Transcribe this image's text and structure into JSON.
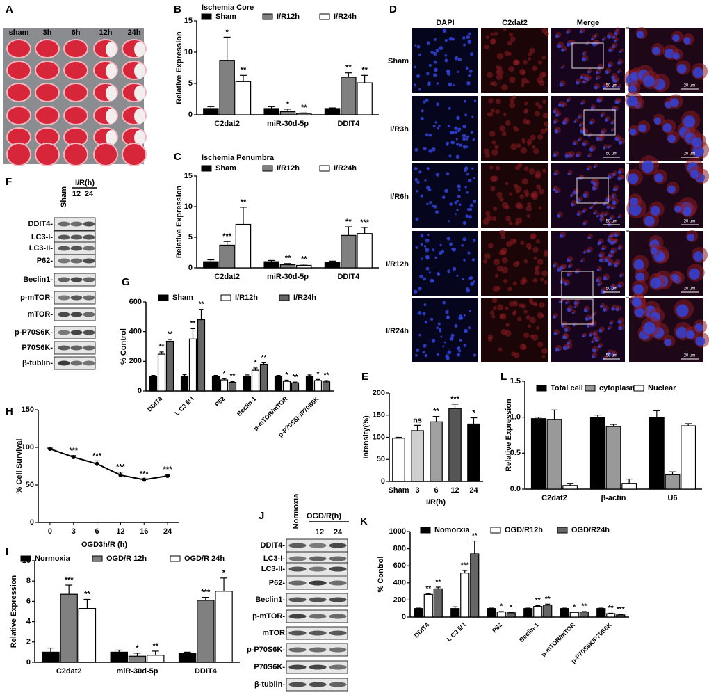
{
  "panels": {
    "A": {
      "label": "A",
      "groups": [
        "sham",
        "3h",
        "6h",
        "12h",
        "24h"
      ]
    },
    "D": {
      "label": "D",
      "columns": [
        "DAPI",
        "C2dat2",
        "Merge"
      ],
      "rows": [
        "Sham",
        "I/R3h",
        "I/R6h",
        "I/R12h",
        "I/R24h"
      ],
      "scale_bars": [
        "50 μm",
        "20 μm"
      ]
    },
    "F": {
      "label": "F",
      "header": "Sham",
      "group": "I/R(h)",
      "lanes": [
        "12",
        "24"
      ],
      "rows": [
        "DDIT4-",
        "LC3-I-",
        "LC3-II-",
        "P62-",
        "Beclin1-",
        "p-mTOR-",
        "mTOR-",
        "p-P70S6K-",
        "P70S6K-",
        "β-tublin-"
      ]
    },
    "J": {
      "label": "J",
      "header": "Normoxia",
      "group": "OGD/R(h)",
      "lanes": [
        "12",
        "24"
      ],
      "rows": [
        "DDIT4-",
        "LC3-I-",
        "LC3-II-",
        "P62-",
        "Beclin1-",
        "p-mTOR-",
        "mTOR",
        "p-P70S6K-",
        "P70S6K-",
        "β-tublin-"
      ]
    }
  },
  "chart_data": [
    {
      "type": "bar",
      "label": "B",
      "title": "Ischemia Core",
      "y_label": "Relative Expression",
      "categories": [
        "C2dat2",
        "miR-30d-5p",
        "DDIT4"
      ],
      "ylim": [
        0,
        15
      ],
      "yticks": [
        0,
        5,
        10,
        15
      ],
      "series": [
        {
          "name": "Sham",
          "color": "#000000",
          "values": [
            1,
            1,
            1
          ],
          "errors": [
            0.3,
            0.3,
            0.1
          ]
        },
        {
          "name": "I/R12h",
          "color": "#808080",
          "values": [
            8.7,
            0.5,
            6
          ],
          "errors": [
            3.7,
            0.4,
            0.7
          ],
          "annotations": [
            "*",
            "*",
            "**"
          ]
        },
        {
          "name": "I/R24h",
          "color": "#ffffff",
          "values": [
            5.3,
            0.2,
            5.1
          ],
          "errors": [
            1,
            0.1,
            1.2
          ],
          "annotations": [
            "**",
            "**",
            "**"
          ]
        }
      ]
    },
    {
      "type": "bar",
      "label": "C",
      "title": "Ischemia Penumbra",
      "y_label": "Relative Expression",
      "categories": [
        "C2dat2",
        "miR-30d-5p",
        "DDIT4"
      ],
      "ylim": [
        0,
        15
      ],
      "yticks": [
        0,
        5,
        10,
        15
      ],
      "series": [
        {
          "name": "Sham",
          "color": "#000000",
          "values": [
            1,
            1,
            0.9
          ],
          "errors": [
            0.3,
            0.2,
            0.2
          ]
        },
        {
          "name": "I/R12h",
          "color": "#808080",
          "values": [
            3.7,
            0.5,
            5.3
          ],
          "errors": [
            0.6,
            0.2,
            1.4
          ],
          "annotations": [
            "***",
            "**",
            "**"
          ]
        },
        {
          "name": "I/R24h",
          "color": "#ffffff",
          "values": [
            7.1,
            0.4,
            5.6
          ],
          "errors": [
            2.8,
            0.2,
            1
          ],
          "annotations": [
            "**",
            "**",
            "***"
          ]
        }
      ]
    },
    {
      "type": "bar",
      "label": "G",
      "y_label": "% Control",
      "categories": [
        "DDIT4",
        "L C3 Ⅱ/ Ⅰ",
        "P62",
        "Beclin-1",
        "p-mTOR/mTOR",
        "p-P70S6K/P70S6K"
      ],
      "ylim": [
        0,
        600
      ],
      "yticks": [
        0,
        200,
        400,
        600
      ],
      "series": [
        {
          "name": "Sham",
          "color": "#000000",
          "values": [
            100,
            100,
            100,
            100,
            100,
            100
          ],
          "errors": [
            5,
            10,
            5,
            8,
            5,
            8
          ]
        },
        {
          "name": "I/R12h",
          "color": "#ffffff",
          "values": [
            248,
            350,
            75,
            140,
            65,
            70
          ],
          "errors": [
            15,
            70,
            8,
            15,
            8,
            8
          ],
          "annotations": [
            "**",
            "**",
            "*",
            "*",
            "*",
            "*"
          ]
        },
        {
          "name": "I/R24h",
          "color": "#666666",
          "values": [
            335,
            480,
            58,
            180,
            55,
            62
          ],
          "errors": [
            12,
            70,
            5,
            10,
            5,
            8
          ],
          "annotations": [
            "**",
            "**",
            "**",
            "**",
            "**",
            "**"
          ]
        }
      ]
    },
    {
      "type": "bar",
      "label": "E",
      "y_label": "Intensity(%)",
      "x_label": "I/R(h)",
      "categories": [
        "Sham",
        "3",
        "6",
        "12",
        "24"
      ],
      "ylim": [
        0,
        200
      ],
      "yticks": [
        0,
        50,
        100,
        150,
        200
      ],
      "values": [
        98,
        115,
        135,
        165,
        130
      ],
      "errors": [
        2,
        12,
        12,
        10,
        14
      ],
      "colors": [
        "#ffffff",
        "#d0d0d0",
        "#a0a0a0",
        "#555555",
        "#000000"
      ],
      "annotations": [
        null,
        "ns",
        "**",
        "***",
        "*"
      ]
    },
    {
      "type": "bar",
      "label": "L",
      "y_label": "Relative Expression",
      "categories": [
        "C2dat2",
        "β-actin",
        "U6"
      ],
      "ylim": [
        0,
        1.5
      ],
      "yticks": [
        {
          "value": 0,
          "label": "0.0"
        },
        0.5,
        {
          "value": 1,
          "label": "1.0"
        },
        1.5
      ],
      "series": [
        {
          "name": "Total cell",
          "color": "#000000",
          "values": [
            0.98,
            1.0,
            1.0
          ],
          "errors": [
            0.02,
            0.03,
            0.09
          ]
        },
        {
          "name": "cytoplasm",
          "color": "#999999",
          "values": [
            0.97,
            0.87,
            0.2
          ],
          "errors": [
            0.13,
            0.03,
            0.04
          ]
        },
        {
          "name": "Nuclear",
          "color": "#ffffff",
          "values": [
            0.05,
            0.08,
            0.88
          ],
          "errors": [
            0.03,
            0.06,
            0.03
          ]
        }
      ]
    },
    {
      "type": "line",
      "label": "H",
      "y_label": "% Cell Survival",
      "x_label": "OGD3h/R (h)",
      "categories": [
        "0",
        "3",
        "6",
        "12",
        "16",
        "24"
      ],
      "ylim": [
        0,
        150
      ],
      "yticks": [
        0,
        50,
        100,
        150
      ],
      "values": [
        98,
        87,
        78,
        63,
        57,
        62
      ],
      "errors": [
        1,
        2,
        4,
        4,
        1,
        2
      ],
      "color": "#000000",
      "annotations": [
        null,
        "***",
        "***",
        "***",
        "***",
        "***"
      ]
    },
    {
      "type": "bar",
      "label": "I",
      "y_label": "Relative Expression",
      "categories": [
        "C2dat2",
        "miR-30d-5p",
        "DDIT4"
      ],
      "ylim": [
        0,
        10
      ],
      "yticks": [
        0,
        2,
        4,
        6,
        8,
        10
      ],
      "series": [
        {
          "name": "Normoxia",
          "color": "#000000",
          "values": [
            1,
            1,
            0.9
          ],
          "errors": [
            0.4,
            0.2,
            0.1
          ]
        },
        {
          "name": "OGD/R 12h",
          "color": "#808080",
          "values": [
            6.7,
            0.6,
            6.1
          ],
          "errors": [
            0.9,
            0.3,
            0.3
          ],
          "annotations": [
            "***",
            "*",
            "***"
          ]
        },
        {
          "name": "OGD/R 24h",
          "color": "#ffffff",
          "values": [
            5.3,
            0.7,
            7
          ],
          "errors": [
            0.9,
            0.4,
            1.3
          ],
          "annotations": [
            "**",
            "**",
            "*"
          ]
        }
      ]
    },
    {
      "type": "bar",
      "label": "K",
      "y_label": "% Control",
      "categories": [
        "DDIT4",
        "L C3 Ⅱ/ Ⅰ",
        "P62",
        "Beclin-1",
        "p-mTOR/mTOR",
        "p-P70S6K/P70S6K"
      ],
      "ylim": [
        0,
        1000
      ],
      "yticks": [
        0,
        200,
        400,
        600,
        800,
        1000
      ],
      "series": [
        {
          "name": "Nomorxia",
          "color": "#000000",
          "values": [
            100,
            100,
            100,
            100,
            100,
            100
          ],
          "errors": [
            5,
            20,
            5,
            5,
            5,
            5
          ]
        },
        {
          "name": "OGD/R12h",
          "color": "#ffffff",
          "values": [
            265,
            515,
            60,
            125,
            55,
            40
          ],
          "errors": [
            10,
            30,
            5,
            10,
            5,
            5
          ],
          "annotations": [
            "**",
            "***",
            "*",
            "**",
            "*",
            "**"
          ]
        },
        {
          "name": "OGD/R24h",
          "color": "#666666",
          "values": [
            330,
            740,
            50,
            140,
            60,
            25
          ],
          "errors": [
            20,
            150,
            5,
            12,
            5,
            5
          ],
          "annotations": [
            "**",
            "**",
            "*",
            "**",
            "**",
            "***"
          ]
        }
      ]
    }
  ]
}
